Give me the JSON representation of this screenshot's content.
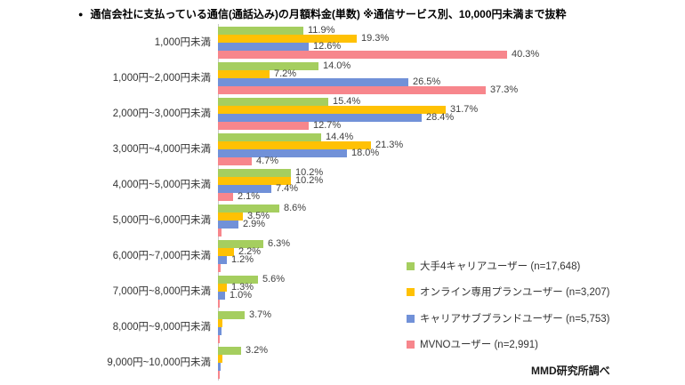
{
  "title": {
    "bullet": "●",
    "text": "通信会社に支払っている通信(通話込み)の月額料金(単数) ※通信サービス別、10,000円未満まで抜粋"
  },
  "source": "MMD研究所調べ",
  "colors": {
    "carrier_green": "#A5CE5F",
    "online_orange": "#FFC104",
    "subbrand_blue": "#7191D8",
    "mvno_pink": "#F7868C",
    "axis_gray": "#C9C9C9"
  },
  "chart_data": {
    "type": "bar",
    "orientation": "horizontal",
    "value_unit": "%",
    "xlim": [
      0,
      41
    ],
    "grid": false,
    "legend_position": "right-bottom",
    "categories": [
      "1,000円未満",
      "1,000円~2,000円未満",
      "2,000円~3,000円未満",
      "3,000円~4,000円未満",
      "4,000円~5,000円未満",
      "5,000円~6,000円未満",
      "6,000円~7,000円未満",
      "7,000円~8,000円未満",
      "8,000円~9,000円未満",
      "9,000円~10,000円未満"
    ],
    "series": [
      {
        "name": "大手4キャリアユーザー (n=17,648)",
        "color": "#A5CE5F",
        "values": [
          11.9,
          14.0,
          15.4,
          14.4,
          10.2,
          8.6,
          6.3,
          5.6,
          3.7,
          3.2
        ],
        "labels": [
          "11.9%",
          "14.0%",
          "15.4%",
          "14.4%",
          "10.2%",
          "8.6%",
          "6.3%",
          "5.6%",
          "3.7%",
          "3.2%"
        ]
      },
      {
        "name": "オンライン専用プランユーザー (n=3,207)",
        "color": "#FFC104",
        "values": [
          19.3,
          7.2,
          31.7,
          21.3,
          10.2,
          3.5,
          2.2,
          1.3,
          0.6,
          0.6
        ],
        "labels": [
          "19.3%",
          "7.2%",
          "31.7%",
          "21.3%",
          "10.2%",
          "3.5%",
          "2.2%",
          "1.3%",
          "",
          ""
        ]
      },
      {
        "name": "キャリアサブブランドユーザー (n=5,753)",
        "color": "#7191D8",
        "values": [
          12.6,
          26.5,
          28.4,
          18.0,
          7.4,
          2.9,
          1.2,
          1.0,
          0.5,
          0.4
        ],
        "labels": [
          "12.6%",
          "26.5%",
          "28.4%",
          "18.0%",
          "7.4%",
          "2.9%",
          "1.2%",
          "1.0%",
          "",
          ""
        ]
      },
      {
        "name": "MVNOユーザー (n=2,991)",
        "color": "#F7868C",
        "values": [
          40.3,
          37.3,
          12.7,
          4.7,
          2.1,
          0.5,
          0.4,
          0.3,
          0.2,
          0.2
        ],
        "labels": [
          "40.3%",
          "37.3%",
          "12.7%",
          "4.7%",
          "2.1%",
          "",
          "",
          "",
          "",
          ""
        ]
      }
    ],
    "legend": [
      {
        "label": "大手4キャリアユーザー (n=17,648)",
        "color": "#A5CE5F"
      },
      {
        "label": "オンライン専用プランユーザー (n=3,207)",
        "color": "#FFC104"
      },
      {
        "label": "キャリアサブブランドユーザー (n=5,753)",
        "color": "#7191D8"
      },
      {
        "label": "MVNOユーザー (n=2,991)",
        "color": "#F7868C"
      }
    ]
  }
}
